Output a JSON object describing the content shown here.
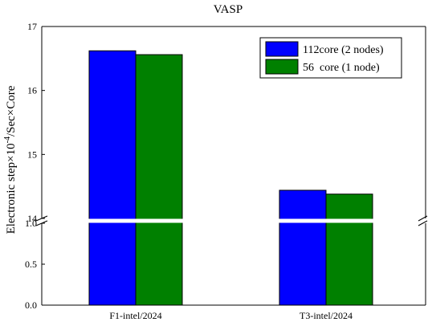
{
  "chart_data": {
    "type": "bar",
    "title": "VASP",
    "ylabel_main": "Electronic step×10",
    "ylabel_exp": "-4",
    "ylabel_tail": "/Sec×Core",
    "categories": [
      "F1-intel/2024",
      "T3-intel/2024"
    ],
    "series": [
      {
        "name": "112core (2 nodes)",
        "values": [
          16.62,
          14.44
        ],
        "color": "#0000ff"
      },
      {
        "name": "56  core (1 node)",
        "values": [
          16.56,
          14.38
        ],
        "color": "#008000"
      }
    ],
    "axis_break": true,
    "y_segments": [
      {
        "range": [
          0,
          1.0
        ],
        "ticks": [
          "0.0",
          "0.5",
          "1.0"
        ]
      },
      {
        "range": [
          14,
          17
        ],
        "ticks": [
          "14",
          "15",
          "16",
          "17"
        ]
      }
    ],
    "legend_position": "top-right",
    "grid": false
  }
}
